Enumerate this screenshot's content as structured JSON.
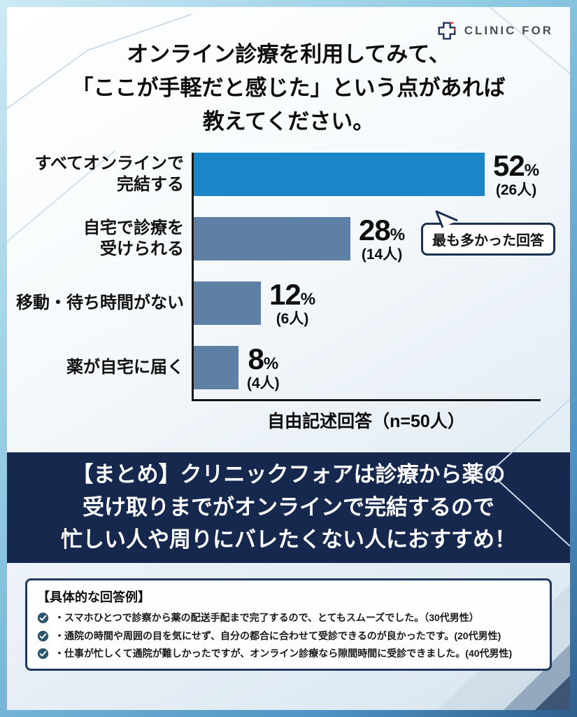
{
  "brand": {
    "name": "CLINIC FOR"
  },
  "title": {
    "text": "オンライン診療を利用してみて、\n「ここが手軽だと感じた」という点があれば\n教えてください。"
  },
  "chart_data": {
    "type": "bar",
    "orientation": "horizontal",
    "title": "オンライン診療を利用してみて、「ここが手軽だと感じた」という点があれば教えてください。",
    "categories": [
      "すべてオンラインで\n完結する",
      "自宅で診療を\n受けられる",
      "移動・待ち時間がない",
      "薬が自宅に届く"
    ],
    "values": [
      52,
      28,
      12,
      8
    ],
    "counts": [
      26,
      14,
      6,
      4
    ],
    "count_labels": [
      "(26人)",
      "(14人)",
      "(6人)",
      "(4人)"
    ],
    "unit": "%",
    "xlabel": "自由記述回答（n=50人）",
    "xlim": [
      0,
      60
    ],
    "grid": false,
    "legend": "none",
    "annotation": "最も多かった回答",
    "highlight_color": "#1a86c8",
    "bar_color": "#5d80a4",
    "axis_color": "#151515"
  },
  "summary": {
    "text": "【まとめ】クリニックフォアは診療から薬の\n受け取りまでがオンラインで完結するので\n忙しい人や周りにバレたくない人におすすめ！",
    "background": "#16284d"
  },
  "examples": {
    "heading": "【具体的な回答例】",
    "items": [
      "・スマホひとつで診察から薬の配送手配まで完了するので、とてもスムーズでした。（30代男性）",
      "・通院の時間や周囲の目を気にせず、自分の都合に合わせて受診できるのが良かったです。(20代男性)",
      "・仕事が忙しくて通院が難しかったですが、オンライン診療なら隙間時間に受診できました。(40代男性)"
    ]
  }
}
